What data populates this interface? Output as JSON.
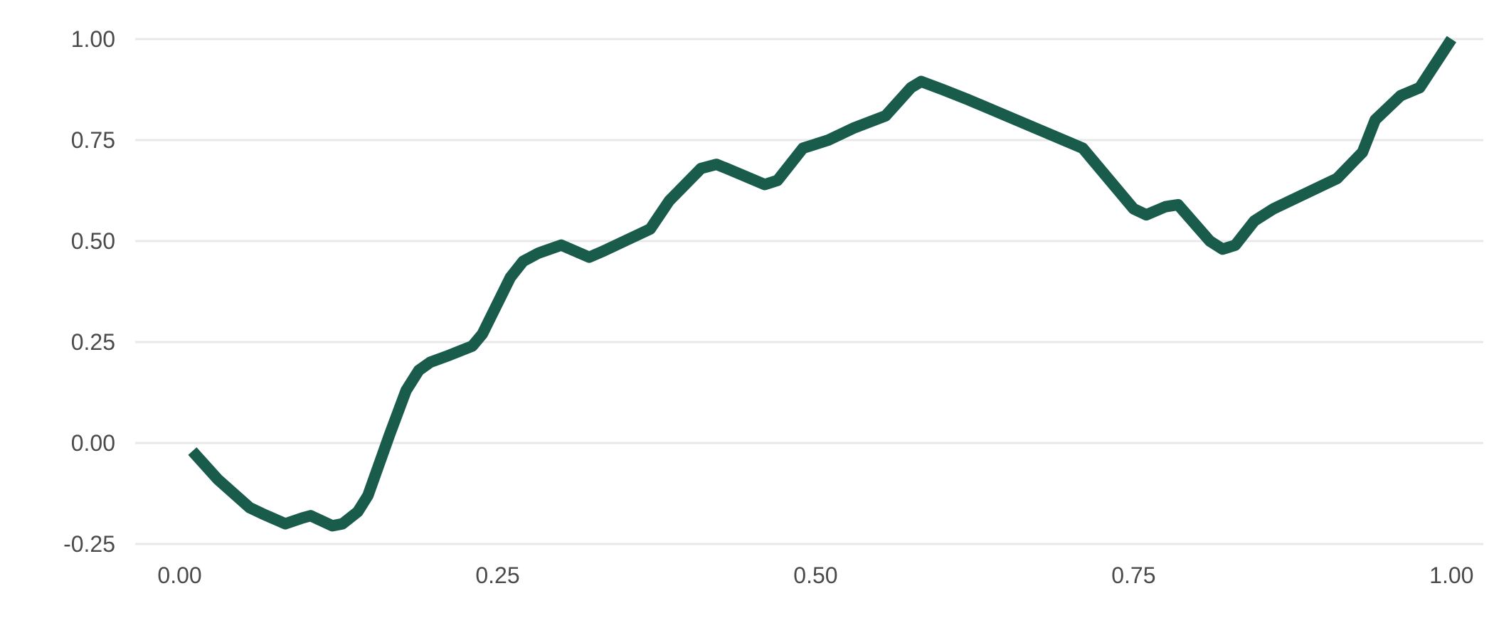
{
  "chart_data": {
    "type": "line",
    "title": "",
    "xlabel": "",
    "ylabel": "",
    "xlim": [
      -0.035,
      1.025
    ],
    "ylim": [
      -0.25,
      1.0
    ],
    "x_ticks": [
      0.0,
      0.25,
      0.5,
      0.75,
      1.0
    ],
    "x_tick_labels": [
      "0.00",
      "0.25",
      "0.50",
      "0.75",
      "1.00"
    ],
    "y_ticks": [
      -0.25,
      0.0,
      0.25,
      0.5,
      0.75,
      1.0
    ],
    "y_tick_labels": [
      "-0.25",
      "0.00",
      "0.25",
      "0.50",
      "0.75",
      "1.00"
    ],
    "grid": "horizontal-major",
    "legend": "none",
    "series": [
      {
        "color": "#1a5c4c",
        "x": [
          0.01,
          0.03,
          0.055,
          0.065,
          0.083,
          0.097,
          0.103,
          0.12,
          0.128,
          0.14,
          0.148,
          0.165,
          0.178,
          0.188,
          0.197,
          0.21,
          0.23,
          0.238,
          0.26,
          0.27,
          0.282,
          0.3,
          0.322,
          0.333,
          0.37,
          0.385,
          0.41,
          0.422,
          0.43,
          0.46,
          0.47,
          0.49,
          0.51,
          0.53,
          0.555,
          0.575,
          0.583,
          0.6,
          0.62,
          0.68,
          0.71,
          0.75,
          0.76,
          0.775,
          0.785,
          0.81,
          0.82,
          0.83,
          0.845,
          0.86,
          0.9,
          0.91,
          0.93,
          0.94,
          0.96,
          0.975,
          1.0
        ],
        "y": [
          -0.02,
          -0.09,
          -0.16,
          -0.175,
          -0.2,
          -0.185,
          -0.18,
          -0.205,
          -0.2,
          -0.17,
          -0.13,
          0.02,
          0.13,
          0.18,
          0.2,
          0.215,
          0.24,
          0.27,
          0.41,
          0.45,
          0.47,
          0.49,
          0.46,
          0.475,
          0.53,
          0.6,
          0.68,
          0.69,
          0.68,
          0.64,
          0.65,
          0.73,
          0.75,
          0.78,
          0.81,
          0.88,
          0.895,
          0.875,
          0.85,
          0.77,
          0.73,
          0.58,
          0.565,
          0.585,
          0.59,
          0.5,
          0.48,
          0.49,
          0.55,
          0.58,
          0.64,
          0.655,
          0.72,
          0.8,
          0.86,
          0.88,
          1.0
        ]
      }
    ]
  }
}
